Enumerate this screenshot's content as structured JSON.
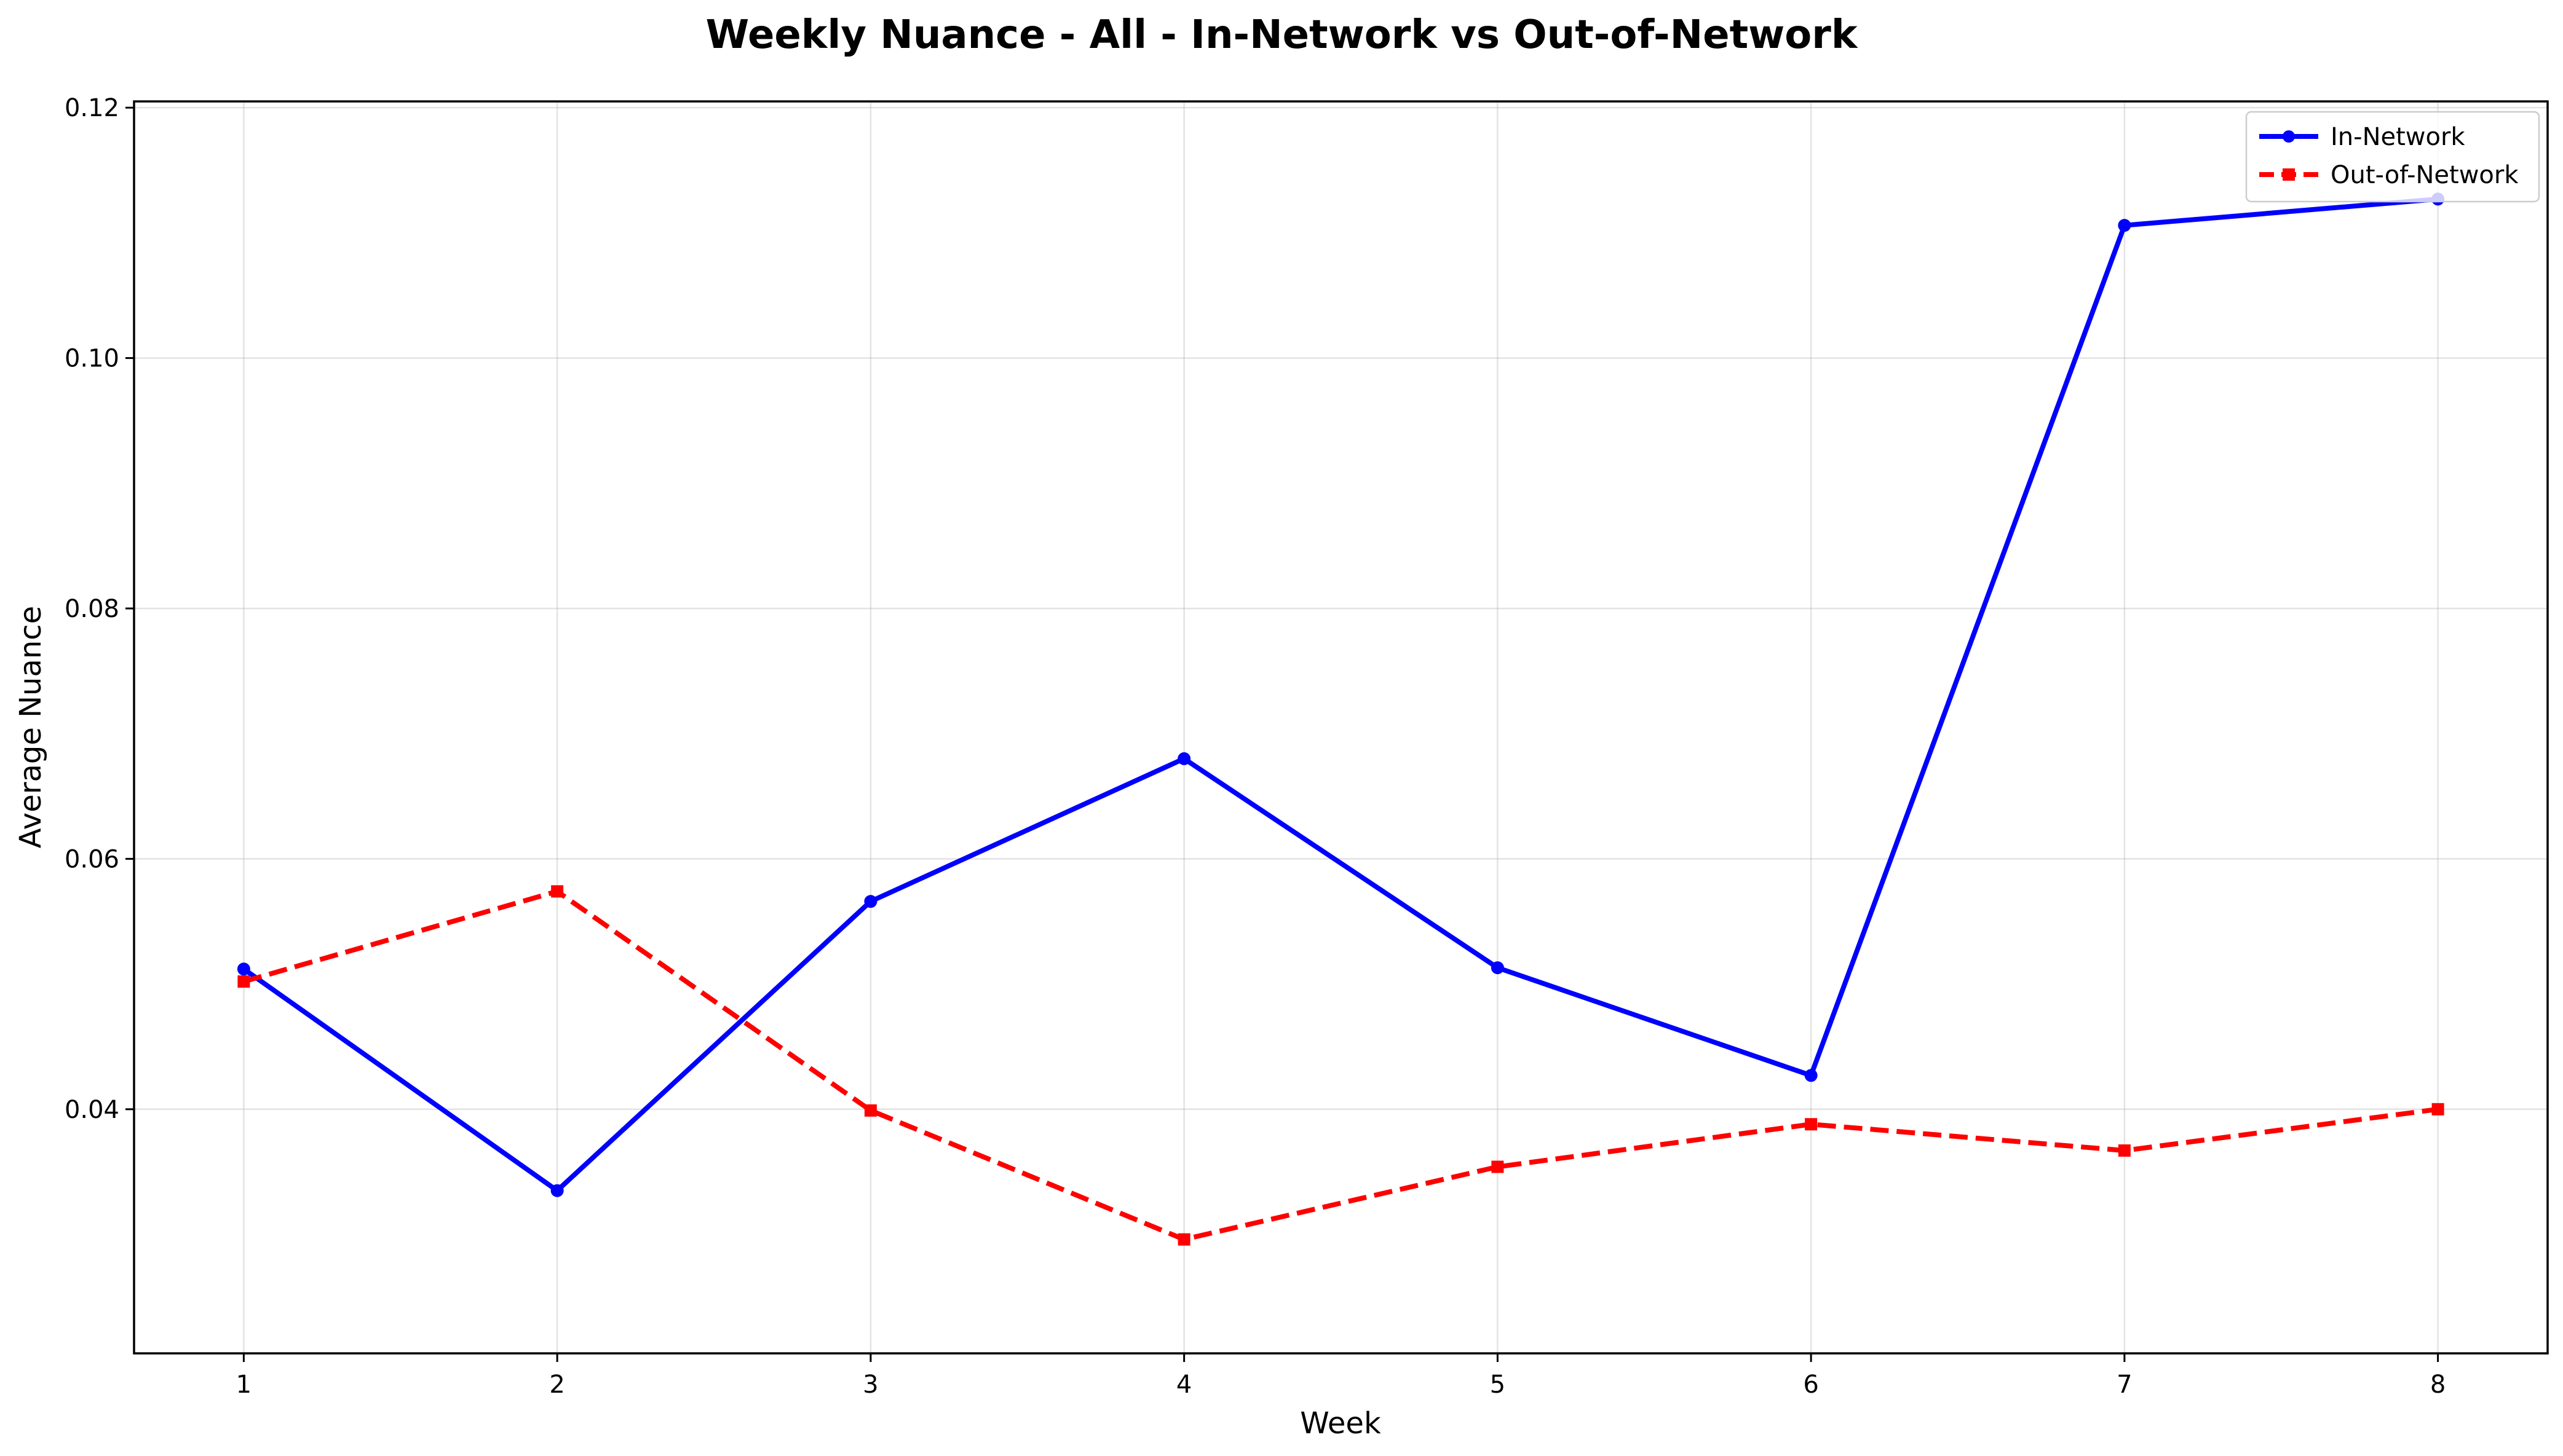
{
  "chart_data": {
    "type": "line",
    "title": "Weekly Nuance - All - In-Network vs Out-of-Network",
    "xlabel": "Week",
    "ylabel": "Average Nuance",
    "x": [
      1,
      2,
      3,
      4,
      5,
      6,
      7,
      8
    ],
    "x_tick_labels": [
      "1",
      "2",
      "3",
      "4",
      "5",
      "6",
      "7",
      "8"
    ],
    "xlim": [
      0.65,
      8.35
    ],
    "y_ticks": [
      0.04,
      0.06,
      0.08,
      0.1,
      0.12
    ],
    "y_tick_labels": [
      "0.04",
      "0.06",
      "0.08",
      "0.10",
      "0.12"
    ],
    "ylim": [
      0.0205,
      0.1205
    ],
    "grid": true,
    "legend_position": "top-right",
    "series": [
      {
        "name": "In-Network",
        "color": "#0000ff",
        "line_style": "solid",
        "marker": "circle",
        "values": [
          0.0512,
          0.0335,
          0.0566,
          0.068,
          0.0513,
          0.0427,
          0.1106,
          0.1127
        ]
      },
      {
        "name": "Out-of-Network",
        "color": "#ff0000",
        "line_style": "dashed",
        "marker": "square",
        "values": [
          0.0502,
          0.0574,
          0.0399,
          0.0296,
          0.0354,
          0.0388,
          0.0367,
          0.04
        ]
      }
    ]
  }
}
